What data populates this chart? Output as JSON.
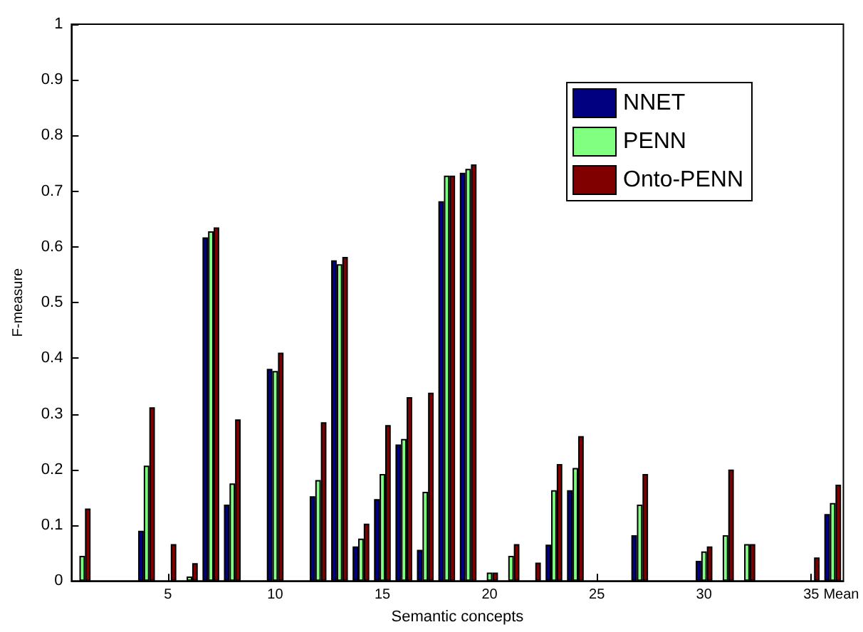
{
  "chart_data": {
    "type": "bar",
    "xlabel": "Semantic concepts",
    "ylabel": "F-measure",
    "categories": [
      null,
      null,
      null,
      null,
      "5",
      null,
      null,
      null,
      null,
      "10",
      null,
      null,
      null,
      null,
      "15",
      null,
      null,
      null,
      null,
      "20",
      null,
      null,
      null,
      null,
      "25",
      null,
      null,
      null,
      null,
      "30",
      null,
      null,
      null,
      null,
      "35",
      "Mean"
    ],
    "series": [
      {
        "name": "NNET",
        "color": "#000080",
        "values": [
          0,
          0,
          0,
          0.09,
          0,
          0,
          0.617,
          0.137,
          0,
          0.381,
          0,
          0.152,
          0.576,
          0.062,
          0.147,
          0.245,
          0.056,
          0.682,
          0.733,
          0,
          0,
          0,
          0.065,
          0.163,
          0,
          0,
          0.082,
          0,
          0,
          0.036,
          0,
          0,
          0,
          0,
          0,
          0.12
        ]
      },
      {
        "name": "PENN",
        "color": "#80ff80",
        "values": [
          0.045,
          0,
          0,
          0.207,
          0,
          0.008,
          0.628,
          0.175,
          0,
          0.377,
          0,
          0.181,
          0.569,
          0.076,
          0.192,
          0.255,
          0.16,
          0.728,
          0.74,
          0.015,
          0.045,
          0,
          0.163,
          0.203,
          0,
          0,
          0.137,
          0,
          0,
          0.053,
          0.082,
          0.066,
          0,
          0,
          0,
          0.14
        ]
      },
      {
        "name": "Onto-PENN",
        "color": "#800000",
        "values": [
          0.13,
          0,
          0,
          0.312,
          0.066,
          0.032,
          0.635,
          0.29,
          0,
          0.41,
          0,
          0.285,
          0.582,
          0.103,
          0.28,
          0.33,
          0.338,
          0.728,
          0.748,
          0.015,
          0.066,
          0.033,
          0.21,
          0.26,
          0,
          0,
          0.192,
          0,
          0,
          0.062,
          0.2,
          0.066,
          0,
          0,
          0.042,
          0.173
        ]
      }
    ],
    "ylim": [
      0,
      1
    ],
    "yticks": [
      0,
      0.1,
      0.2,
      0.3,
      0.4,
      0.5,
      0.6,
      0.7,
      0.8,
      0.9,
      1
    ],
    "grid": false,
    "legend": "top right"
  }
}
